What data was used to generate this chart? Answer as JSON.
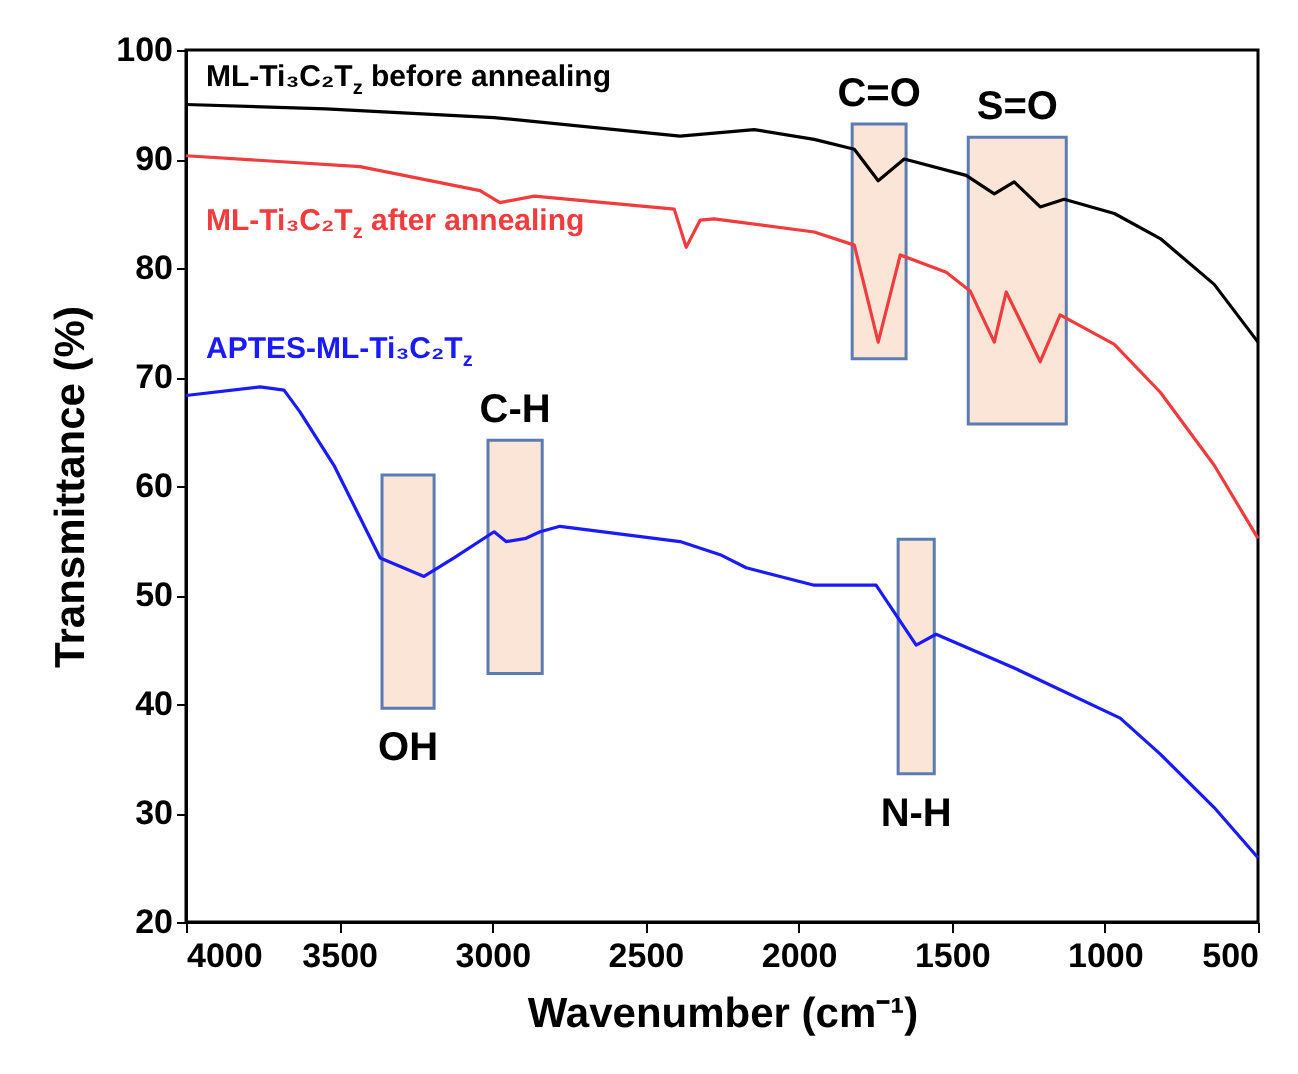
{
  "chart_data": {
    "type": "line",
    "xlabel": "Wavenumber (cm⁻¹)",
    "ylabel": "Transmittance (%)",
    "xlim": [
      4000,
      500
    ],
    "xticks": [
      4000,
      3500,
      3000,
      2500,
      2000,
      1500,
      1000,
      500
    ],
    "ylim": [
      20,
      100
    ],
    "yticks": [
      20,
      30,
      40,
      50,
      60,
      70,
      80,
      90,
      100
    ],
    "series": [
      {
        "name": "ML-Ti₃C₂T$_{z}$ before annealing",
        "color": "#000000",
        "x": [
          4000,
          3543,
          2994,
          2387,
          2145,
          1949,
          1818,
          1740,
          1655,
          1453,
          1361,
          1296,
          1211,
          1133,
          969,
          819,
          643,
          500
        ],
        "values": [
          95.0,
          94.6,
          93.8,
          92.1,
          92.7,
          91.8,
          90.9,
          88.0,
          90.0,
          88.5,
          86.8,
          87.9,
          85.6,
          86.3,
          85.0,
          82.7,
          78.5,
          73.2
        ]
      },
      {
        "name": "ML-Ti₃C₂T$_{z}$ after annealing",
        "color": "#f03c3c",
        "x": [
          4000,
          3432,
          3040,
          2975,
          2863,
          2406,
          2367,
          2321,
          2276,
          1949,
          1818,
          1740,
          1668,
          1518,
          1440,
          1361,
          1322,
          1211,
          1146,
          969,
          819,
          643,
          500
        ],
        "values": [
          90.3,
          89.3,
          87.1,
          86.0,
          86.6,
          85.4,
          81.9,
          84.4,
          84.5,
          83.3,
          82.1,
          73.2,
          81.2,
          79.6,
          77.9,
          73.2,
          77.8,
          71.4,
          75.7,
          73.0,
          68.6,
          61.9,
          55.2
        ]
      },
      {
        "name": "APTES-ML-Ti₃C₂T$_{z}$",
        "color": "#1a1aff",
        "x": [
          4000,
          3758,
          3680,
          3628,
          3517,
          3366,
          3223,
          3125,
          2994,
          2955,
          2890,
          2844,
          2779,
          2387,
          2256,
          2171,
          1949,
          1747,
          1616,
          1551,
          1296,
          950,
          819,
          643,
          500
        ],
        "values": [
          68.3,
          69.1,
          68.8,
          66.8,
          61.9,
          53.4,
          51.7,
          53.4,
          55.8,
          54.9,
          55.2,
          55.8,
          56.3,
          54.9,
          53.7,
          52.5,
          50.9,
          50.9,
          45.4,
          46.4,
          43.3,
          38.7,
          35.4,
          30.5,
          25.9
        ]
      }
    ],
    "bands": [
      {
        "axis": "x",
        "from": 1825,
        "to": 1649,
        "color": "#fbe5d6",
        "label": "C=O"
      },
      {
        "axis": "x",
        "from": 1446,
        "to": 1126,
        "color": "#fbe5d6",
        "label": "S=O"
      },
      {
        "axis": "x",
        "from": 3360,
        "to": 3190,
        "color": "#fbe5d6",
        "label": "OH"
      },
      {
        "axis": "x",
        "from": 3014,
        "to": 2837,
        "color": "#fbe5d6",
        "label": "C-H"
      },
      {
        "axis": "x",
        "from": 1675,
        "to": 1557,
        "color": "#fbe5d6",
        "label": "N-H"
      }
    ],
    "line_style": "solid",
    "marker": "none",
    "grid": false
  }
}
